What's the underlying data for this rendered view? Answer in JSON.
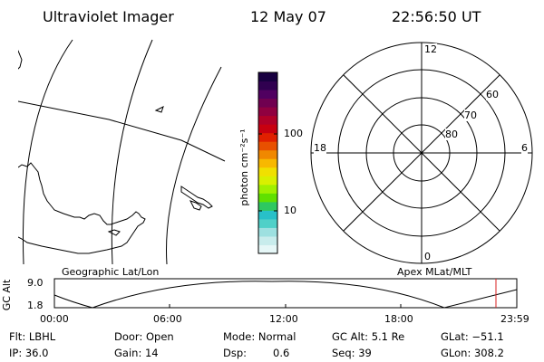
{
  "header": {
    "instrument": "Ultraviolet Imager",
    "date": "12 May 07",
    "time": "22:56:50 UT"
  },
  "colorbar": {
    "unit_label": "photon cm⁻²s⁻¹",
    "ticks": [
      "100",
      "10"
    ],
    "colors": [
      "#e6f7f7",
      "#c8ecec",
      "#9de0e0",
      "#4fd0c8",
      "#28c0c8",
      "#2ec860",
      "#60e000",
      "#a0f000",
      "#d8f000",
      "#f0e000",
      "#f8b800",
      "#f08800",
      "#e85000",
      "#e02000",
      "#c80010",
      "#b00028",
      "#900040",
      "#700050",
      "#500060",
      "#300050",
      "#180040"
    ]
  },
  "polar": {
    "labels": {
      "top": "12",
      "bottom": "0",
      "left": "18",
      "right": "6",
      "r60": "60",
      "r70": "70",
      "r80": "80"
    }
  },
  "map_labels": {
    "left": "Geographic Lat/Lon",
    "right": "Apex MLat/MLT"
  },
  "altitude_plot": {
    "ylabel": "GC Alt",
    "yticks": [
      "9.0",
      "1.8"
    ],
    "xticks": [
      "00:00",
      "06:00",
      "12:00",
      "18:00",
      "23:59"
    ],
    "marker_color": "#d82020"
  },
  "status": {
    "row1": {
      "filter": "Flt: LBHL",
      "door": "Door: Open",
      "mode": "Mode: Normal",
      "gc_alt": "GC Alt: 5.1 Re",
      "glat": "GLat: −51.1"
    },
    "row2": {
      "ip": "IP: 36.0",
      "gain": "Gain: 14",
      "dsp_label": "Dsp:",
      "dsp_value": "0.6",
      "seq": "Seq: 39",
      "glon": "GLon: 308.2"
    }
  }
}
